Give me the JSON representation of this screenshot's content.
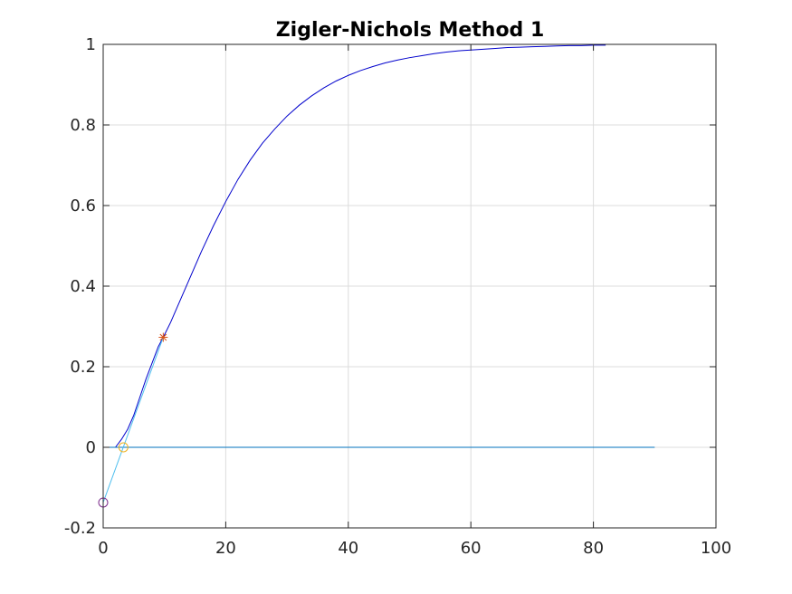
{
  "chart_data": {
    "type": "line",
    "title": "Zigler-Nichols Method 1",
    "xlabel": "",
    "ylabel": "",
    "xlim": [
      0,
      100
    ],
    "ylim": [
      -0.2,
      1
    ],
    "xticks": [
      0,
      20,
      40,
      60,
      80,
      100
    ],
    "xtick_labels": [
      "0",
      "20",
      "40",
      "60",
      "80",
      "100"
    ],
    "yticks": [
      -0.2,
      0,
      0.2,
      0.4,
      0.6,
      0.8,
      1
    ],
    "ytick_labels": [
      "-0.2",
      "0",
      "0.2",
      "0.4",
      "0.6",
      "0.8",
      "1"
    ],
    "grid": true,
    "series": [
      {
        "role": "step-response",
        "color": "#0000cc",
        "x": [
          2,
          3,
          4,
          5,
          6,
          7,
          8,
          9,
          9.8,
          11,
          12,
          14,
          16,
          18,
          20,
          22,
          24,
          26,
          28,
          30,
          32,
          34,
          36,
          38,
          40,
          42,
          44,
          46,
          48,
          50,
          52,
          54,
          56,
          58,
          60,
          62,
          64,
          66,
          68,
          70,
          72,
          74,
          76,
          78,
          80,
          82
        ],
        "y": [
          0.0,
          0.02,
          0.045,
          0.08,
          0.125,
          0.17,
          0.21,
          0.25,
          0.273,
          0.31,
          0.345,
          0.415,
          0.485,
          0.55,
          0.61,
          0.665,
          0.713,
          0.755,
          0.79,
          0.822,
          0.849,
          0.872,
          0.892,
          0.909,
          0.923,
          0.935,
          0.945,
          0.954,
          0.961,
          0.967,
          0.972,
          0.977,
          0.981,
          0.984,
          0.986,
          0.988,
          0.99,
          0.992,
          0.993,
          0.994,
          0.995,
          0.996,
          0.997,
          0.997,
          0.998,
          0.998
        ]
      },
      {
        "role": "baseline",
        "color": "#0072bd",
        "x": [
          0,
          90
        ],
        "y": [
          0,
          0
        ]
      },
      {
        "role": "tangent-line",
        "color": "#4dbeee",
        "x": [
          0,
          9.8
        ],
        "y": [
          -0.137,
          0.273
        ]
      }
    ],
    "markers": [
      {
        "shape": "circle",
        "color": "#7e2f8e",
        "x": 0,
        "y": -0.137
      },
      {
        "shape": "circle",
        "color": "#edb120",
        "x": 3.3,
        "y": 0
      },
      {
        "shape": "asterisk",
        "color": "#d95319",
        "x": 9.8,
        "y": 0.273
      }
    ]
  }
}
